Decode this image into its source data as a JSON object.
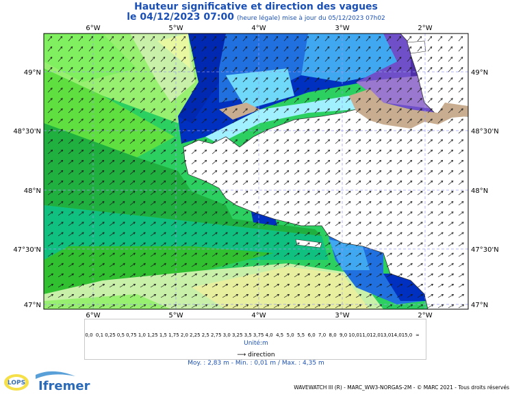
{
  "header": {
    "title": "Hauteur significative et direction des vagues",
    "date_line": "le 04/12/2023 07:00",
    "date_note": "(heure légale) mise à jour du 05/12/2023 07h02"
  },
  "axes": {
    "lon_ticks": [
      "6°W",
      "5°W",
      "4°W",
      "3°W",
      "2°W"
    ],
    "lat_ticks": [
      "49°N",
      "48°30'N",
      "48°N",
      "47°30'N",
      "47°N"
    ]
  },
  "legend": {
    "labels": [
      "0,0",
      "0,1",
      "0,25",
      "0,5",
      "0,75",
      "1,0",
      "1,25",
      "1,5",
      "1,75",
      "2,0",
      "2,25",
      "2,5",
      "2,75",
      "3,0",
      "3,25",
      "3,5",
      "3,75",
      "4,0",
      "4,5",
      "5,0",
      "5,5",
      "6,0",
      "7,0",
      "8,0",
      "9,0",
      "10,0",
      "11,0",
      "12,0",
      "13,0",
      "14,0",
      "15,0",
      "∞"
    ],
    "colors": [
      "#e6d3c1",
      "#c8ad90",
      "#bfa0c8",
      "#9a78d0",
      "#7050c8",
      "#5030a8",
      "#a0f0ff",
      "#70d8f8",
      "#40a8f0",
      "#2070e0",
      "#0030c0",
      "#c8f0a8",
      "#98f070",
      "#60e040",
      "#30c030",
      "#20b040",
      "#10c080",
      "#30e060",
      "#ffff60",
      "#ffe000",
      "#ffb000",
      "#ff8000",
      "#ff5000",
      "#f03030",
      "#c01010",
      "#8a2a10",
      "#a07040",
      "#d0a0d0",
      "#e040e0",
      "#c000c0",
      "#800040"
    ],
    "unit": "Unité:m",
    "direction_label": "direction",
    "stats": "Moy. : 2,83 m   -   Min. : 0,01 m / Max. : 4,35 m"
  },
  "footer": {
    "credit": "WAVEWATCH III (R) - MARC_WW3-NORGAS-2M - © MARC 2021 - Tous droits réservés",
    "logo_lops": "LOPS",
    "logo_ifremer": "Ifremer"
  }
}
